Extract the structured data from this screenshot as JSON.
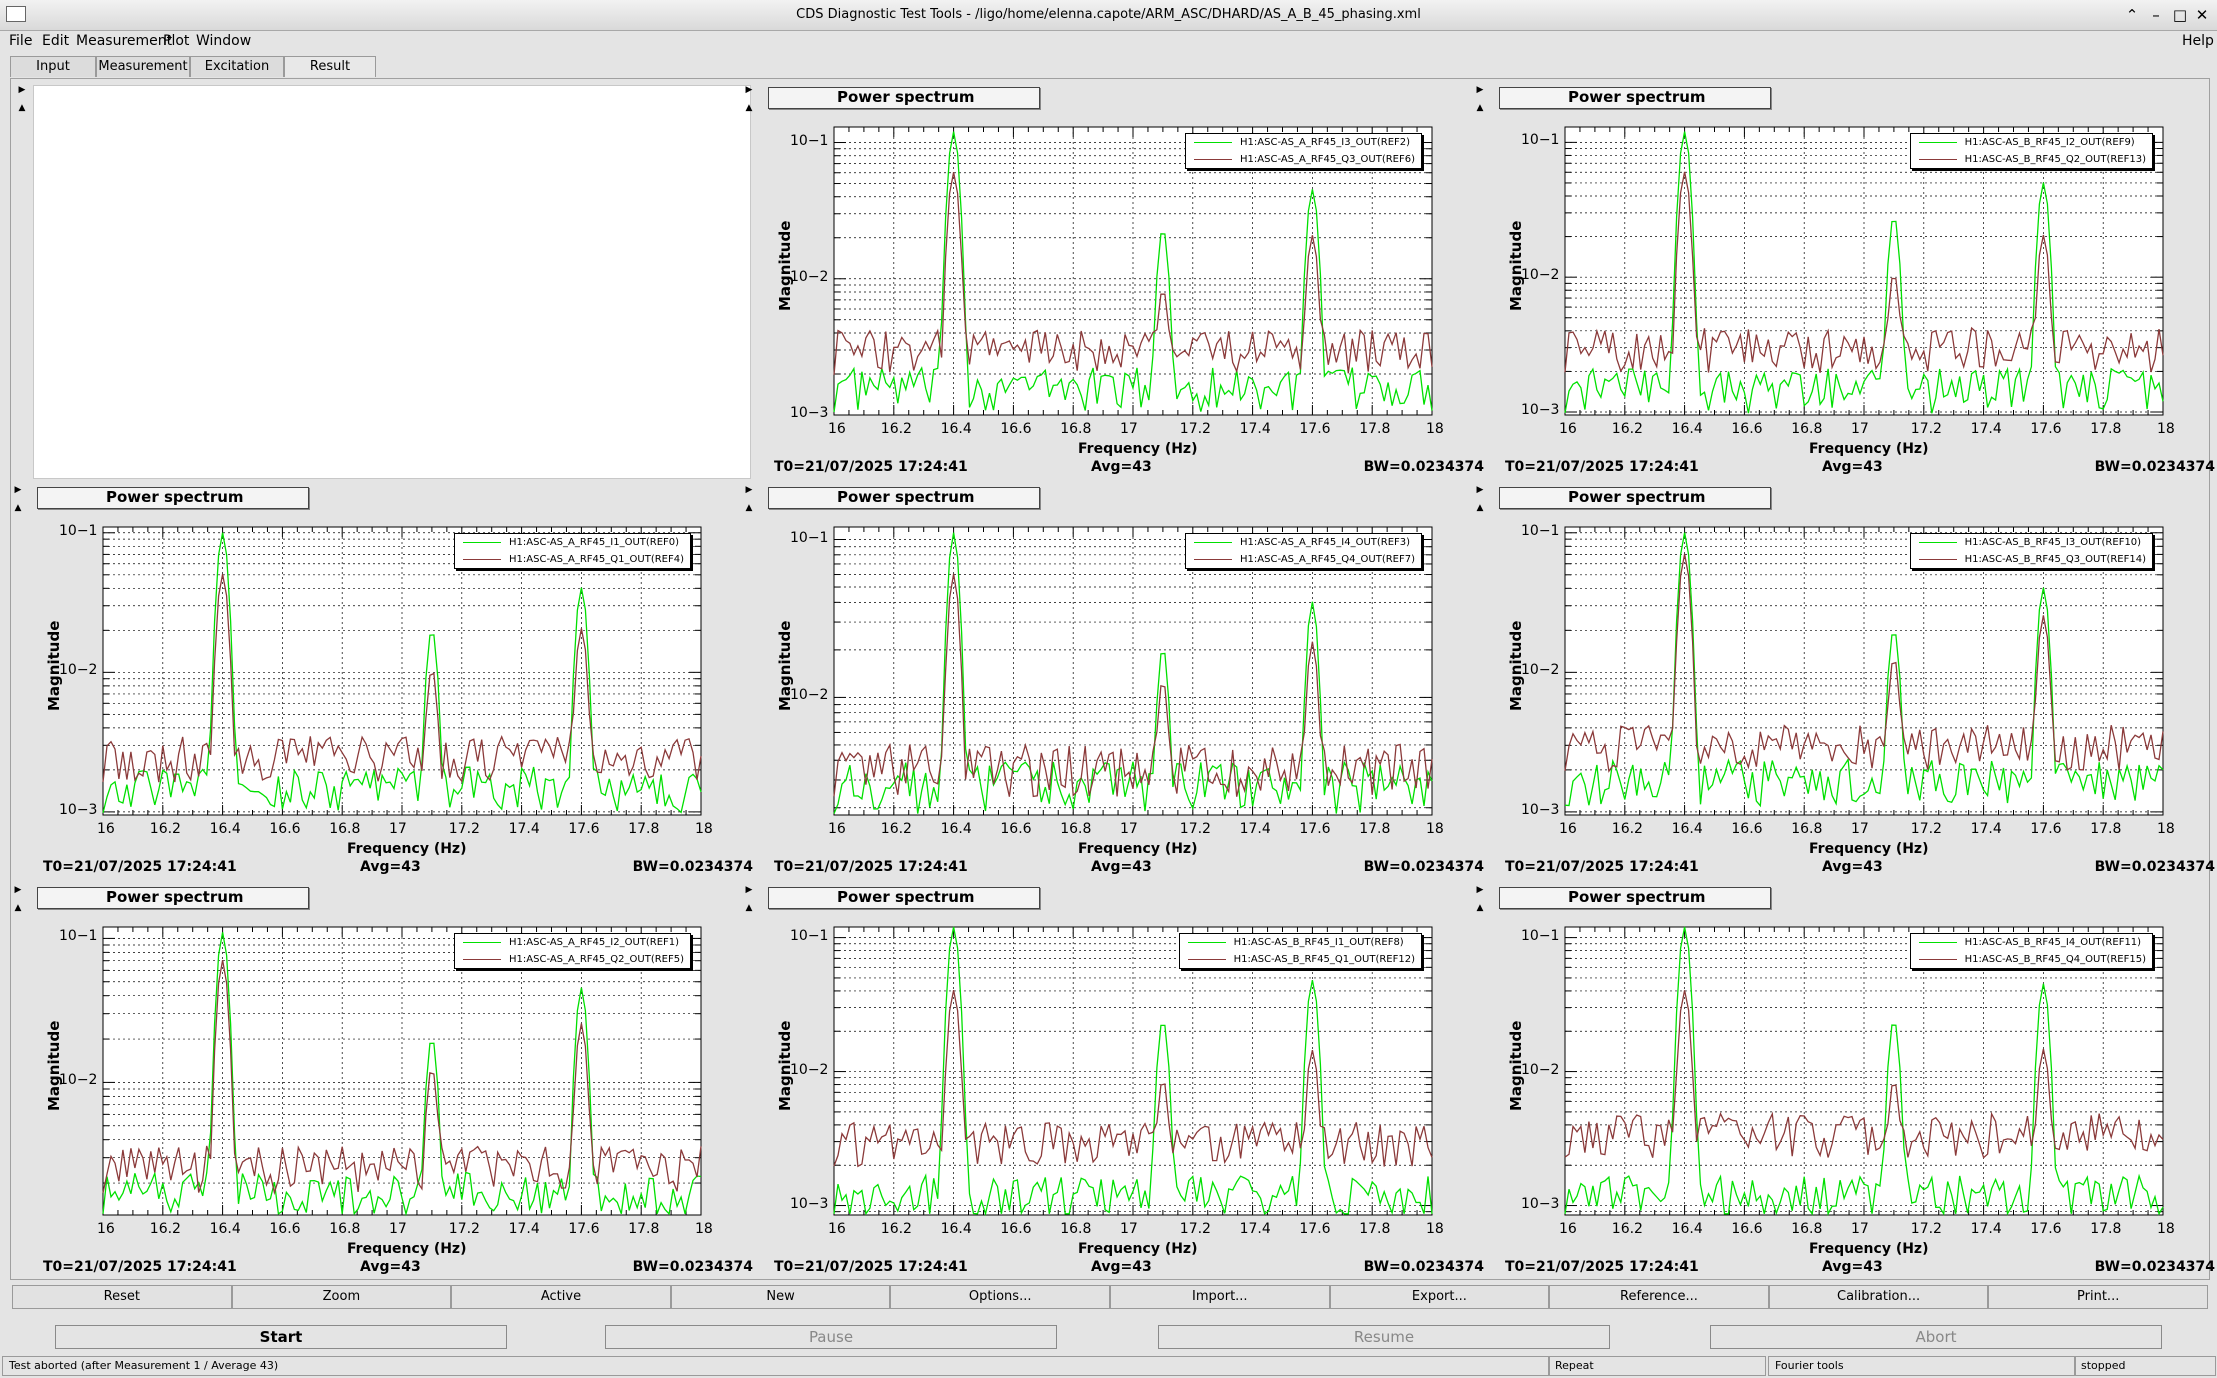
{
  "window": {
    "title": "CDS Diagnostic Test Tools - /ligo/home/elenna.capote/ARM_ASC/DHARD/AS_A_B_45_phasing.xml",
    "help": "Help"
  },
  "menu": [
    "File",
    "Edit",
    "Measurement",
    "Plot",
    "Window"
  ],
  "tabs": [
    "Input",
    "Measurement",
    "Excitation",
    "Result"
  ],
  "plot_common": {
    "title": "Power spectrum",
    "xlabel": "Frequency (Hz)",
    "ylabel": "Magnitude",
    "t0": "T0=21/07/2025 17:24:41",
    "avg": "Avg=43",
    "bw": "BW=0.0234374",
    "xticks": [
      "16",
      "16.2",
      "16.4",
      "16.6",
      "16.8",
      "17",
      "17.2",
      "17.4",
      "17.6",
      "17.8",
      "18"
    ]
  },
  "chart_data": [
    {
      "type": "line",
      "panel": "row1-col2",
      "xlim": [
        16,
        18
      ],
      "ylim_log": [
        0.001,
        0.13
      ],
      "yticks": [
        "10−1",
        "10−2",
        "10−3"
      ],
      "series": [
        {
          "name": "H1:ASC-AS_A_RF45_I3_OUT(REF2)",
          "color": "#00e000",
          "peaks": [
            [
              16.4,
              0.12
            ],
            [
              17.1,
              0.023
            ],
            [
              17.6,
              0.045
            ]
          ],
          "floor": 0.0016
        },
        {
          "name": "H1:ASC-AS_A_RF45_Q3_OUT(REF6)",
          "color": "#8b3a3a",
          "peaks": [
            [
              16.4,
              0.06
            ],
            [
              17.1,
              0.008
            ],
            [
              17.6,
              0.02
            ]
          ],
          "floor": 0.003
        }
      ]
    },
    {
      "type": "line",
      "panel": "row1-col3",
      "xlim": [
        16,
        18
      ],
      "ylim_log": [
        0.00095,
        0.13
      ],
      "yticks": [
        "10−1",
        "10−2",
        "10−3"
      ],
      "series": [
        {
          "name": "H1:ASC-AS_B_RF45_I2_OUT(REF9)",
          "color": "#00e000",
          "peaks": [
            [
              16.4,
              0.12
            ],
            [
              17.1,
              0.028
            ],
            [
              17.6,
              0.05
            ]
          ],
          "floor": 0.0015
        },
        {
          "name": "H1:ASC-AS_B_RF45_Q2_OUT(REF13)",
          "color": "#8b3a3a",
          "peaks": [
            [
              16.4,
              0.06
            ],
            [
              17.1,
              0.01
            ],
            [
              17.6,
              0.02
            ]
          ],
          "floor": 0.003
        }
      ]
    },
    {
      "type": "line",
      "panel": "row2-col1",
      "xlim": [
        16,
        18
      ],
      "ylim_log": [
        0.00095,
        0.11
      ],
      "yticks": [
        "10−1",
        "10−2",
        "10−3"
      ],
      "series": [
        {
          "name": "H1:ASC-AS_A_RF45_I1_OUT(REF0)",
          "color": "#00e000",
          "peaks": [
            [
              16.4,
              0.1
            ],
            [
              17.1,
              0.02
            ],
            [
              17.6,
              0.04
            ]
          ],
          "floor": 0.0015
        },
        {
          "name": "H1:ASC-AS_A_RF45_Q1_OUT(REF4)",
          "color": "#8b3a3a",
          "peaks": [
            [
              16.4,
              0.05
            ],
            [
              17.1,
              0.01
            ],
            [
              17.6,
              0.02
            ]
          ],
          "floor": 0.0025
        }
      ]
    },
    {
      "type": "line",
      "panel": "row2-col2",
      "xlim": [
        16,
        18
      ],
      "ylim_log": [
        0.0018,
        0.12
      ],
      "yticks": [
        "10−1",
        "10−2"
      ],
      "series": [
        {
          "name": "H1:ASC-AS_A_RF45_I4_OUT(REF3)",
          "color": "#00e000",
          "peaks": [
            [
              16.4,
              0.11
            ],
            [
              17.1,
              0.02
            ],
            [
              17.6,
              0.04
            ]
          ],
          "floor": 0.0028
        },
        {
          "name": "H1:ASC-AS_A_RF45_Q4_OUT(REF7)",
          "color": "#8b3a3a",
          "peaks": [
            [
              16.4,
              0.06
            ],
            [
              17.1,
              0.012
            ],
            [
              17.6,
              0.022
            ]
          ],
          "floor": 0.0036
        }
      ]
    },
    {
      "type": "line",
      "panel": "row2-col3",
      "xlim": [
        16,
        18
      ],
      "ylim_log": [
        0.00095,
        0.11
      ],
      "yticks": [
        "10−1",
        "10−2",
        "10−3"
      ],
      "series": [
        {
          "name": "H1:ASC-AS_B_RF45_I3_OUT(REF10)",
          "color": "#00e000",
          "peaks": [
            [
              16.4,
              0.1
            ],
            [
              17.1,
              0.02
            ],
            [
              17.6,
              0.04
            ]
          ],
          "floor": 0.0017
        },
        {
          "name": "H1:ASC-AS_B_RF45_Q3_OUT(REF14)",
          "color": "#8b3a3a",
          "peaks": [
            [
              16.4,
              0.07
            ],
            [
              17.1,
              0.012
            ],
            [
              17.6,
              0.025
            ]
          ],
          "floor": 0.003
        }
      ]
    },
    {
      "type": "line",
      "panel": "row3-col1",
      "xlim": [
        16,
        18
      ],
      "ylim_log": [
        0.0012,
        0.12
      ],
      "yticks": [
        "10−1",
        "10−2"
      ],
      "series": [
        {
          "name": "H1:ASC-AS_A_RF45_I2_OUT(REF1)",
          "color": "#00e000",
          "peaks": [
            [
              16.4,
              0.11
            ],
            [
              17.1,
              0.02
            ],
            [
              17.6,
              0.045
            ]
          ],
          "floor": 0.0017
        },
        {
          "name": "H1:ASC-AS_A_RF45_Q2_OUT(REF5)",
          "color": "#8b3a3a",
          "peaks": [
            [
              16.4,
              0.07
            ],
            [
              17.1,
              0.012
            ],
            [
              17.6,
              0.025
            ]
          ],
          "floor": 0.0026
        }
      ]
    },
    {
      "type": "line",
      "panel": "row3-col2",
      "xlim": [
        16,
        18
      ],
      "ylim_log": [
        0.00085,
        0.12
      ],
      "yticks": [
        "10−1",
        "10−2",
        "10−3"
      ],
      "series": [
        {
          "name": "H1:ASC-AS_B_RF45_I1_OUT(REF8)",
          "color": "#00e000",
          "peaks": [
            [
              16.4,
              0.12
            ],
            [
              17.1,
              0.024
            ],
            [
              17.6,
              0.048
            ]
          ],
          "floor": 0.0012
        },
        {
          "name": "H1:ASC-AS_B_RF45_Q1_OUT(REF12)",
          "color": "#8b3a3a",
          "peaks": [
            [
              16.4,
              0.04
            ],
            [
              17.1,
              0.008
            ],
            [
              17.6,
              0.014
            ]
          ],
          "floor": 0.003
        }
      ]
    },
    {
      "type": "line",
      "panel": "row3-col3",
      "xlim": [
        16,
        18
      ],
      "ylim_log": [
        0.00085,
        0.12
      ],
      "yticks": [
        "10−1",
        "10−2",
        "10−3"
      ],
      "series": [
        {
          "name": "H1:ASC-AS_B_RF45_I4_OUT(REF11)",
          "color": "#00e000",
          "peaks": [
            [
              16.4,
              0.12
            ],
            [
              17.1,
              0.024
            ],
            [
              17.6,
              0.045
            ]
          ],
          "floor": 0.0012
        },
        {
          "name": "H1:ASC-AS_B_RF45_Q4_OUT(REF15)",
          "color": "#8b3a3a",
          "peaks": [
            [
              16.4,
              0.04
            ],
            [
              17.1,
              0.008
            ],
            [
              17.6,
              0.014
            ]
          ],
          "floor": 0.0035
        }
      ]
    }
  ],
  "buttons": [
    "Reset",
    "Zoom",
    "Active",
    "New",
    "Options...",
    "Import...",
    "Export...",
    "Reference...",
    "Calibration...",
    "Print..."
  ],
  "run_buttons": [
    "Start",
    "Pause",
    "Resume",
    "Abort"
  ],
  "status": {
    "message": "Test aborted (after Measurement 1 / Average 43)",
    "repeat": "Repeat",
    "tools": "Fourier tools",
    "state": "stopped"
  }
}
